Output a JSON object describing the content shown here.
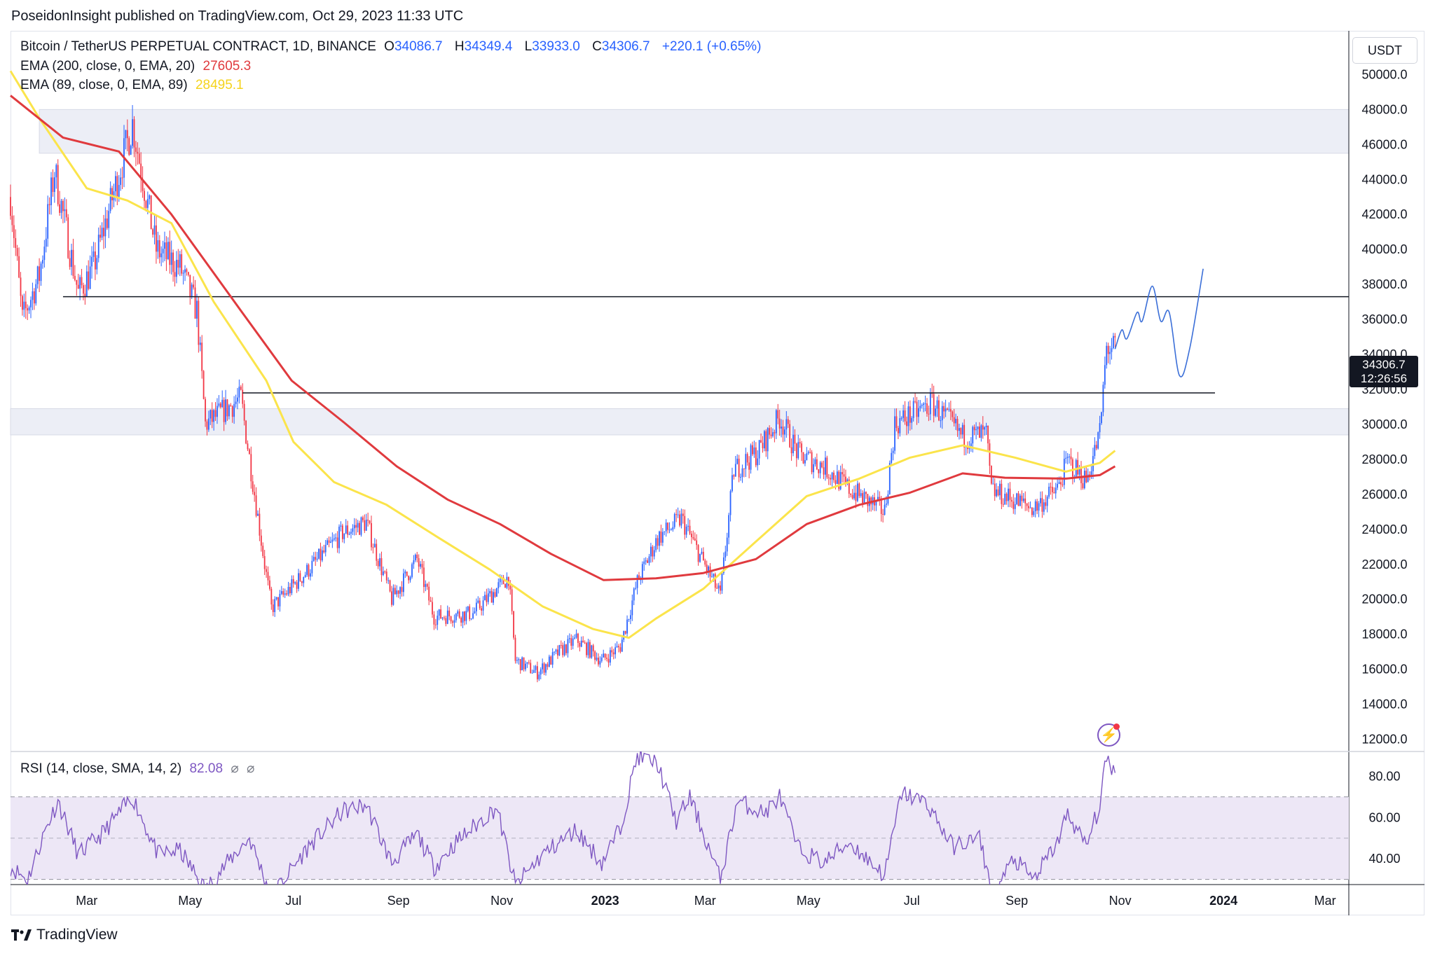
{
  "header": {
    "publisher": "PoseidonInsight published on TradingView.com, Oct 29, 2023 11:33 UTC"
  },
  "legend": {
    "symbol": "Bitcoin / TetherUS PERPETUAL CONTRACT, 1D, BINANCE",
    "open_label": "O",
    "open": "34086.7",
    "high_label": "H",
    "high": "34349.4",
    "low_label": "L",
    "low": "33933.0",
    "close_label": "C",
    "close": "34306.7",
    "change": "+220.1 (+0.65%)",
    "ema200_label": "EMA (200, close, 0, EMA, 20)",
    "ema200_value": "27605.3",
    "ema89_label": "EMA (89, close, 0, EMA, 89)",
    "ema89_value": "28495.1",
    "rsi_label": "RSI (14, close, SMA, 14, 2)",
    "rsi_value": "82.08",
    "rsi_extra1": "⌀",
    "rsi_extra2": "⌀"
  },
  "currency": "USDT",
  "last_price": "34306.7",
  "countdown": "12:26:56",
  "footer": {
    "brand": "TradingView"
  },
  "colors": {
    "up": "#2962ff",
    "down": "#f23645",
    "ema200": "#e03a3e",
    "ema89": "#fbe44b",
    "rsi": "#7e57c2",
    "rsi_band": "#ede7f6",
    "zone": "#eceef6",
    "projection": "#3b6fd8"
  },
  "icons": [
    "tradingview-logo-icon",
    "flash-icon"
  ],
  "chart_data": {
    "type": "candlestick",
    "symbol": "BTCUSDT.P",
    "timeframe": "1D",
    "y_ticks": [
      12000,
      14000,
      16000,
      18000,
      20000,
      22000,
      24000,
      26000,
      28000,
      30000,
      32000,
      34000,
      36000,
      38000,
      40000,
      42000,
      44000,
      46000,
      48000,
      50000
    ],
    "y_tick_labels": [
      "12000.0",
      "14000.0",
      "16000.0",
      "18000.0",
      "20000.0",
      "22000.0",
      "24000.0",
      "26000.0",
      "28000.0",
      "30000.0",
      "32000.0",
      "34000.0",
      "36000.0",
      "38000.0",
      "40000.0",
      "42000.0",
      "44000.0",
      "46000.0",
      "48000.0",
      "50000.0"
    ],
    "x_ticks": [
      {
        "date": "2022-03-01",
        "label": "Mar"
      },
      {
        "date": "2022-05-01",
        "label": "May"
      },
      {
        "date": "2022-07-01",
        "label": "Jul"
      },
      {
        "date": "2022-09-01",
        "label": "Sep"
      },
      {
        "date": "2022-11-01",
        "label": "Nov"
      },
      {
        "date": "2023-01-01",
        "label": "2023"
      },
      {
        "date": "2023-03-01",
        "label": "Mar"
      },
      {
        "date": "2023-05-01",
        "label": "May"
      },
      {
        "date": "2023-07-01",
        "label": "Jul"
      },
      {
        "date": "2023-09-01",
        "label": "Sep"
      },
      {
        "date": "2023-11-01",
        "label": "Nov"
      },
      {
        "date": "2024-01-01",
        "label": "2024"
      },
      {
        "date": "2024-03-01",
        "label": "Mar"
      }
    ],
    "x_range": [
      "2022-01-15",
      "2024-03-15"
    ],
    "y_range": [
      11300,
      52500
    ],
    "price_anchors": [
      [
        "2022-01-15",
        43000
      ],
      [
        "2022-01-22",
        36000
      ],
      [
        "2022-02-01",
        38500
      ],
      [
        "2022-02-10",
        44500
      ],
      [
        "2022-02-24",
        37500
      ],
      [
        "2022-03-05",
        39000
      ],
      [
        "2022-03-28",
        47200
      ],
      [
        "2022-04-11",
        40000
      ],
      [
        "2022-04-25",
        39000
      ],
      [
        "2022-05-05",
        36500
      ],
      [
        "2022-05-10",
        30000
      ],
      [
        "2022-05-31",
        31500
      ],
      [
        "2022-06-14",
        22000
      ],
      [
        "2022-06-18",
        19500
      ],
      [
        "2022-07-08",
        21500
      ],
      [
        "2022-07-30",
        23800
      ],
      [
        "2022-08-13",
        24400
      ],
      [
        "2022-08-28",
        20000
      ],
      [
        "2022-09-12",
        22300
      ],
      [
        "2022-09-22",
        19000
      ],
      [
        "2022-10-15",
        19200
      ],
      [
        "2022-11-05",
        21300
      ],
      [
        "2022-11-09",
        16500
      ],
      [
        "2022-11-22",
        15800
      ],
      [
        "2022-12-05",
        17000
      ],
      [
        "2022-12-15",
        17700
      ],
      [
        "2022-12-30",
        16500
      ],
      [
        "2023-01-10",
        17300
      ],
      [
        "2023-01-20",
        21000
      ],
      [
        "2023-02-01",
        23500
      ],
      [
        "2023-02-15",
        24600
      ],
      [
        "2023-03-10",
        20200
      ],
      [
        "2023-03-18",
        27400
      ],
      [
        "2023-04-01",
        28400
      ],
      [
        "2023-04-14",
        30400
      ],
      [
        "2023-04-25",
        28300
      ],
      [
        "2023-05-10",
        27600
      ],
      [
        "2023-05-25",
        26300
      ],
      [
        "2023-06-15",
        25000
      ],
      [
        "2023-06-21",
        30000
      ],
      [
        "2023-07-13",
        31200
      ],
      [
        "2023-07-31",
        29300
      ],
      [
        "2023-08-14",
        29400
      ],
      [
        "2023-08-17",
        26200
      ],
      [
        "2023-09-11",
        25200
      ],
      [
        "2023-09-25",
        26300
      ],
      [
        "2023-10-01",
        27900
      ],
      [
        "2023-10-12",
        26800
      ],
      [
        "2023-10-20",
        29500
      ],
      [
        "2023-10-24",
        34400
      ],
      [
        "2023-10-29",
        34306.7
      ]
    ],
    "ema89_anchors": [
      [
        "2022-01-15",
        50200
      ],
      [
        "2022-02-01",
        47500
      ],
      [
        "2022-03-01",
        43500
      ],
      [
        "2022-03-25",
        42800
      ],
      [
        "2022-04-20",
        41500
      ],
      [
        "2022-05-15",
        37000
      ],
      [
        "2022-06-15",
        32500
      ],
      [
        "2022-07-01",
        29000
      ],
      [
        "2022-07-25",
        26700
      ],
      [
        "2022-08-25",
        25400
      ],
      [
        "2022-09-25",
        23500
      ],
      [
        "2022-10-25",
        21700
      ],
      [
        "2022-11-25",
        19600
      ],
      [
        "2022-12-25",
        18300
      ],
      [
        "2023-01-15",
        17800
      ],
      [
        "2023-01-31",
        18900
      ],
      [
        "2023-02-28",
        20600
      ],
      [
        "2023-03-31",
        23300
      ],
      [
        "2023-04-30",
        25900
      ],
      [
        "2023-05-31",
        26900
      ],
      [
        "2023-06-30",
        28100
      ],
      [
        "2023-07-31",
        28800
      ],
      [
        "2023-08-31",
        28100
      ],
      [
        "2023-09-30",
        27300
      ],
      [
        "2023-10-20",
        27800
      ],
      [
        "2023-10-29",
        28495.1
      ]
    ],
    "ema200_anchors": [
      [
        "2022-01-15",
        48800
      ],
      [
        "2022-02-15",
        46400
      ],
      [
        "2022-03-20",
        45600
      ],
      [
        "2022-04-20",
        42000
      ],
      [
        "2022-05-31",
        36500
      ],
      [
        "2022-06-30",
        32500
      ],
      [
        "2022-07-31",
        30100
      ],
      [
        "2022-08-31",
        27600
      ],
      [
        "2022-09-30",
        25700
      ],
      [
        "2022-10-31",
        24300
      ],
      [
        "2022-11-30",
        22600
      ],
      [
        "2022-12-31",
        21100
      ],
      [
        "2023-01-31",
        21200
      ],
      [
        "2023-02-28",
        21500
      ],
      [
        "2023-03-31",
        22300
      ],
      [
        "2023-04-30",
        24300
      ],
      [
        "2023-05-31",
        25400
      ],
      [
        "2023-06-30",
        26100
      ],
      [
        "2023-07-31",
        27200
      ],
      [
        "2023-08-25",
        26950
      ],
      [
        "2023-09-30",
        26900
      ],
      [
        "2023-10-20",
        27100
      ],
      [
        "2023-10-29",
        27605.3
      ]
    ],
    "projection": [
      [
        "2023-10-29",
        34306.7
      ],
      [
        "2023-11-02",
        35400
      ],
      [
        "2023-11-05",
        34900
      ],
      [
        "2023-11-11",
        36400
      ],
      [
        "2023-11-14",
        35900
      ],
      [
        "2023-11-20",
        37900
      ],
      [
        "2023-11-25",
        35900
      ],
      [
        "2023-11-30",
        36400
      ],
      [
        "2023-12-06",
        32800
      ],
      [
        "2023-12-12",
        34300
      ],
      [
        "2023-12-20",
        38900
      ]
    ],
    "horizontal_lines": [
      {
        "price": 37300,
        "from": "2022-02-15",
        "to": "2024-03-31"
      },
      {
        "price": 31800,
        "from": "2022-06-01",
        "to": "2023-12-27"
      }
    ],
    "zones": [
      {
        "from_price": 45500,
        "to_price": 48000,
        "from": "2022-02-01"
      },
      {
        "from_price": 29400,
        "to_price": 30900,
        "from": "2022-01-15"
      }
    ],
    "rsi": {
      "levels": [
        70,
        50,
        30
      ],
      "y_ticks": [
        40,
        60,
        80
      ],
      "y_tick_labels": [
        "40.00",
        "60.00",
        "80.00"
      ],
      "y_range": [
        27.5,
        92
      ],
      "anchors": [
        [
          "2022-01-15",
          36
        ],
        [
          "2022-01-25",
          30
        ],
        [
          "2022-02-05",
          55
        ],
        [
          "2022-02-12",
          68
        ],
        [
          "2022-02-24",
          42
        ],
        [
          "2022-03-10",
          52
        ],
        [
          "2022-03-28",
          70
        ],
        [
          "2022-04-12",
          42
        ],
        [
          "2022-04-25",
          44
        ],
        [
          "2022-05-10",
          25
        ],
        [
          "2022-05-25",
          40
        ],
        [
          "2022-06-05",
          50
        ],
        [
          "2022-06-18",
          22
        ],
        [
          "2022-07-10",
          46
        ],
        [
          "2022-07-30",
          63
        ],
        [
          "2022-08-13",
          66
        ],
        [
          "2022-08-28",
          38
        ],
        [
          "2022-09-12",
          52
        ],
        [
          "2022-09-22",
          36
        ],
        [
          "2022-10-05",
          48
        ],
        [
          "2022-10-29",
          65
        ],
        [
          "2022-11-09",
          27
        ],
        [
          "2022-11-25",
          42
        ],
        [
          "2022-12-15",
          54
        ],
        [
          "2022-12-30",
          38
        ],
        [
          "2023-01-10",
          55
        ],
        [
          "2023-01-20",
          90
        ],
        [
          "2023-02-01",
          86
        ],
        [
          "2023-02-12",
          58
        ],
        [
          "2023-02-20",
          70
        ],
        [
          "2023-03-10",
          30
        ],
        [
          "2023-03-20",
          68
        ],
        [
          "2023-04-05",
          62
        ],
        [
          "2023-04-14",
          70
        ],
        [
          "2023-04-25",
          45
        ],
        [
          "2023-05-10",
          38
        ],
        [
          "2023-05-25",
          48
        ],
        [
          "2023-06-15",
          32
        ],
        [
          "2023-06-25",
          72
        ],
        [
          "2023-07-10",
          67
        ],
        [
          "2023-07-25",
          46
        ],
        [
          "2023-08-10",
          50
        ],
        [
          "2023-08-18",
          22
        ],
        [
          "2023-08-30",
          40
        ],
        [
          "2023-09-11",
          30
        ],
        [
          "2023-09-25",
          48
        ],
        [
          "2023-10-01",
          62
        ],
        [
          "2023-10-12",
          46
        ],
        [
          "2023-10-20",
          66
        ],
        [
          "2023-10-24",
          89
        ],
        [
          "2023-10-29",
          82.08
        ]
      ]
    }
  }
}
